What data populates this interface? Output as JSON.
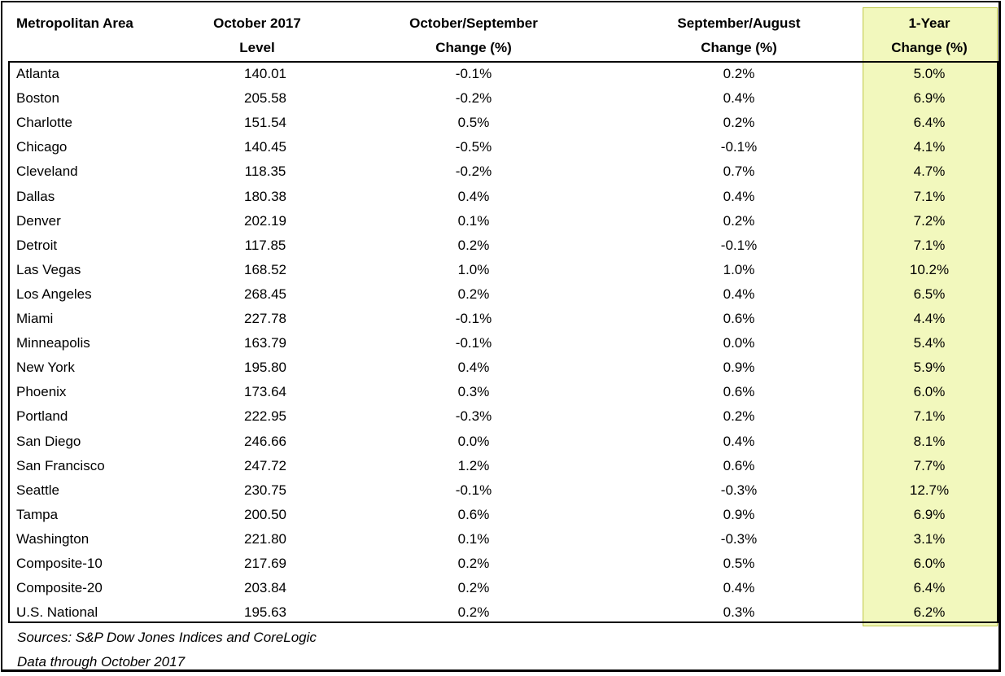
{
  "headers": {
    "area": [
      "",
      "Metropolitan Area"
    ],
    "level": [
      "October 2017",
      "Level"
    ],
    "oct_sep": [
      "October/September",
      "Change (%)"
    ],
    "sep_aug": [
      "September/August",
      "Change (%)"
    ],
    "one_year": [
      "1-Year",
      "Change (%)"
    ]
  },
  "rows": [
    [
      "Atlanta",
      "140.01",
      "-0.1%",
      "0.2%",
      "5.0%"
    ],
    [
      "Boston",
      "205.58",
      "-0.2%",
      "0.4%",
      "6.9%"
    ],
    [
      "Charlotte",
      "151.54",
      "0.5%",
      "0.2%",
      "6.4%"
    ],
    [
      "Chicago",
      "140.45",
      "-0.5%",
      "-0.1%",
      "4.1%"
    ],
    [
      "Cleveland",
      "118.35",
      "-0.2%",
      "0.7%",
      "4.7%"
    ],
    [
      "Dallas",
      "180.38",
      "0.4%",
      "0.4%",
      "7.1%"
    ],
    [
      "Denver",
      "202.19",
      "0.1%",
      "0.2%",
      "7.2%"
    ],
    [
      "Detroit",
      "117.85",
      "0.2%",
      "-0.1%",
      "7.1%"
    ],
    [
      "Las Vegas",
      "168.52",
      "1.0%",
      "1.0%",
      "10.2%"
    ],
    [
      "Los Angeles",
      "268.45",
      "0.2%",
      "0.4%",
      "6.5%"
    ],
    [
      "Miami",
      "227.78",
      "-0.1%",
      "0.6%",
      "4.4%"
    ],
    [
      "Minneapolis",
      "163.79",
      "-0.1%",
      "0.0%",
      "5.4%"
    ],
    [
      "New York",
      "195.80",
      "0.4%",
      "0.9%",
      "5.9%"
    ],
    [
      "Phoenix",
      "173.64",
      "0.3%",
      "0.6%",
      "6.0%"
    ],
    [
      "Portland",
      "222.95",
      "-0.3%",
      "0.2%",
      "7.1%"
    ],
    [
      "San Diego",
      "246.66",
      "0.0%",
      "0.4%",
      "8.1%"
    ],
    [
      "San Francisco",
      "247.72",
      "1.2%",
      "0.6%",
      "7.7%"
    ],
    [
      "Seattle",
      "230.75",
      "-0.1%",
      "-0.3%",
      "12.7%"
    ],
    [
      "Tampa",
      "200.50",
      "0.6%",
      "0.9%",
      "6.9%"
    ],
    [
      "Washington",
      "221.80",
      "0.1%",
      "-0.3%",
      "3.1%"
    ],
    [
      "Composite-10",
      "217.69",
      "0.2%",
      "0.5%",
      "6.0%"
    ],
    [
      "Composite-20",
      "203.84",
      "0.2%",
      "0.4%",
      "6.4%"
    ],
    [
      "U.S. National",
      "195.63",
      "0.2%",
      "0.3%",
      "6.2%"
    ]
  ],
  "footer": {
    "sources": "Sources: S&P Dow Jones Indices and CoreLogic",
    "data_through": "Data through October 2017"
  },
  "colors": {
    "highlight_fill": "#f2f8bd",
    "highlight_border": "#bfc84a"
  }
}
